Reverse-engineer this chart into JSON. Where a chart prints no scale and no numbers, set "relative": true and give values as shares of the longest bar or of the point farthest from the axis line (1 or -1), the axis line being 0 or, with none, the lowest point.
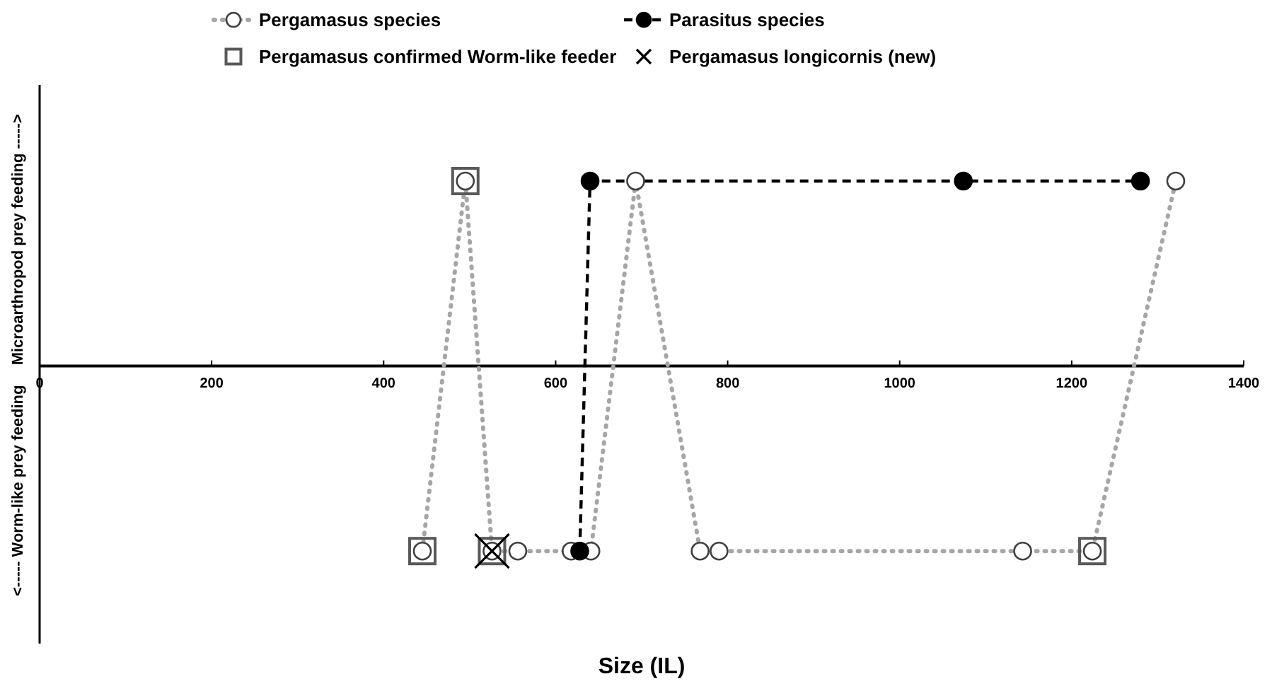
{
  "chart_data": {
    "type": "line",
    "xlabel": "Size (IL)",
    "ylabel": "Microarthropod prey feeding ----->",
    "annotations": [
      "<----- Worm-like prey feeding"
    ],
    "relative": true,
    "xlim": [
      0,
      1400
    ],
    "xticks": [
      0,
      200,
      400,
      600,
      800,
      1000,
      1200,
      1400
    ],
    "grid": false,
    "legend": "top",
    "series": [
      {
        "name": "Pergamasus species",
        "color": "#a6a6a6",
        "line_style": "dotted",
        "marker": "circle",
        "x": [
          445,
          495,
          526,
          556,
          618,
          641,
          693,
          768,
          790,
          1143,
          1224,
          1321
        ],
        "values": [
          -1,
          1,
          -1,
          -1,
          -1,
          -1,
          1,
          -1,
          -1,
          -1,
          -1,
          1
        ]
      },
      {
        "name": "Parasitus species",
        "color": "#000000",
        "line_style": "dashed",
        "marker": "circle",
        "x": [
          628,
          640,
          1074,
          1280
        ],
        "values": [
          -1,
          1,
          1,
          1
        ]
      },
      {
        "name": "Pergamasus confirmed Worm-like feeder",
        "type": "scatter",
        "color": "#595959",
        "marker": "square",
        "x": [
          445,
          495,
          526,
          1224
        ],
        "values": [
          -1,
          1,
          -1,
          -1
        ]
      },
      {
        "name": "Pergamasus longicornis (new)",
        "type": "scatter",
        "color": "#000000",
        "marker": "cross",
        "x": [
          526
        ],
        "values": [
          -1
        ]
      }
    ]
  }
}
